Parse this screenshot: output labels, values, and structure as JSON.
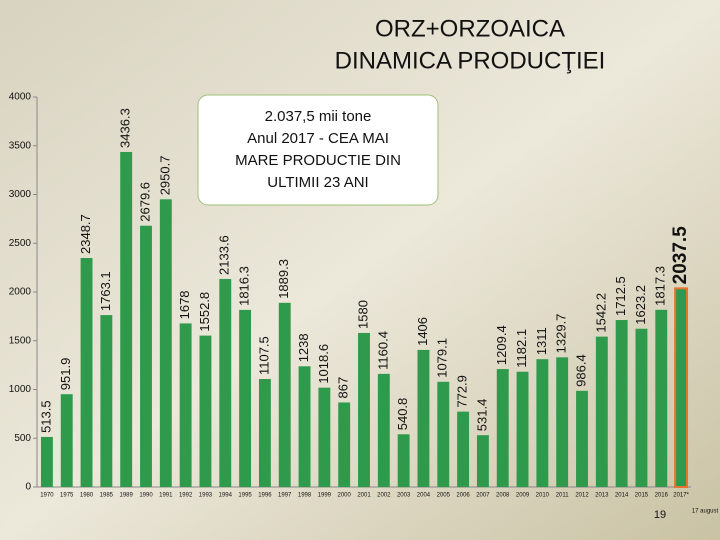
{
  "chart_data": {
    "type": "bar",
    "title": "ORZ+ORZOAICA",
    "subtitle": "DINAMICA PRODUCŢIEI",
    "categories": [
      "1970",
      "1975",
      "1980",
      "1985",
      "1989",
      "1990",
      "1991",
      "1992",
      "1993",
      "1994",
      "1995",
      "1996",
      "1997",
      "1998",
      "1999",
      "2000",
      "2001",
      "2002",
      "2003",
      "2004",
      "2005",
      "2006",
      "2007",
      "2008",
      "2009",
      "2010",
      "2011",
      "2012",
      "2013",
      "2014",
      "2015",
      "2016",
      "2017*"
    ],
    "values": [
      513.5,
      951.9,
      2348.7,
      1763.1,
      3436.3,
      2679.6,
      2950.7,
      1678,
      1552.8,
      2133.6,
      1816.3,
      1107.5,
      1889.3,
      1238,
      1018.6,
      867,
      1580,
      1160.4,
      540.8,
      1406,
      1079.1,
      772.9,
      531.4,
      1209.4,
      1182.1,
      1311,
      1329.7,
      986.4,
      1542.2,
      1712.5,
      1623.2,
      1817.3,
      2037.5
    ],
    "color": "#2f9a4b",
    "highlight": {
      "category": "2017*",
      "edge_color": "#e8732a"
    },
    "ylim": [
      0,
      4000
    ],
    "yticks": [
      0,
      500,
      1000,
      1500,
      2000,
      2500,
      3000,
      3500,
      4000
    ],
    "grid": false,
    "annotation": [
      "2.037,5 mii tone",
      "Anul 2017 - CEA MAI",
      "MARE PRODUCTIE DIN",
      "ULTIMII  23 ANI"
    ],
    "footnote": "17 august"
  },
  "page_number": "19"
}
